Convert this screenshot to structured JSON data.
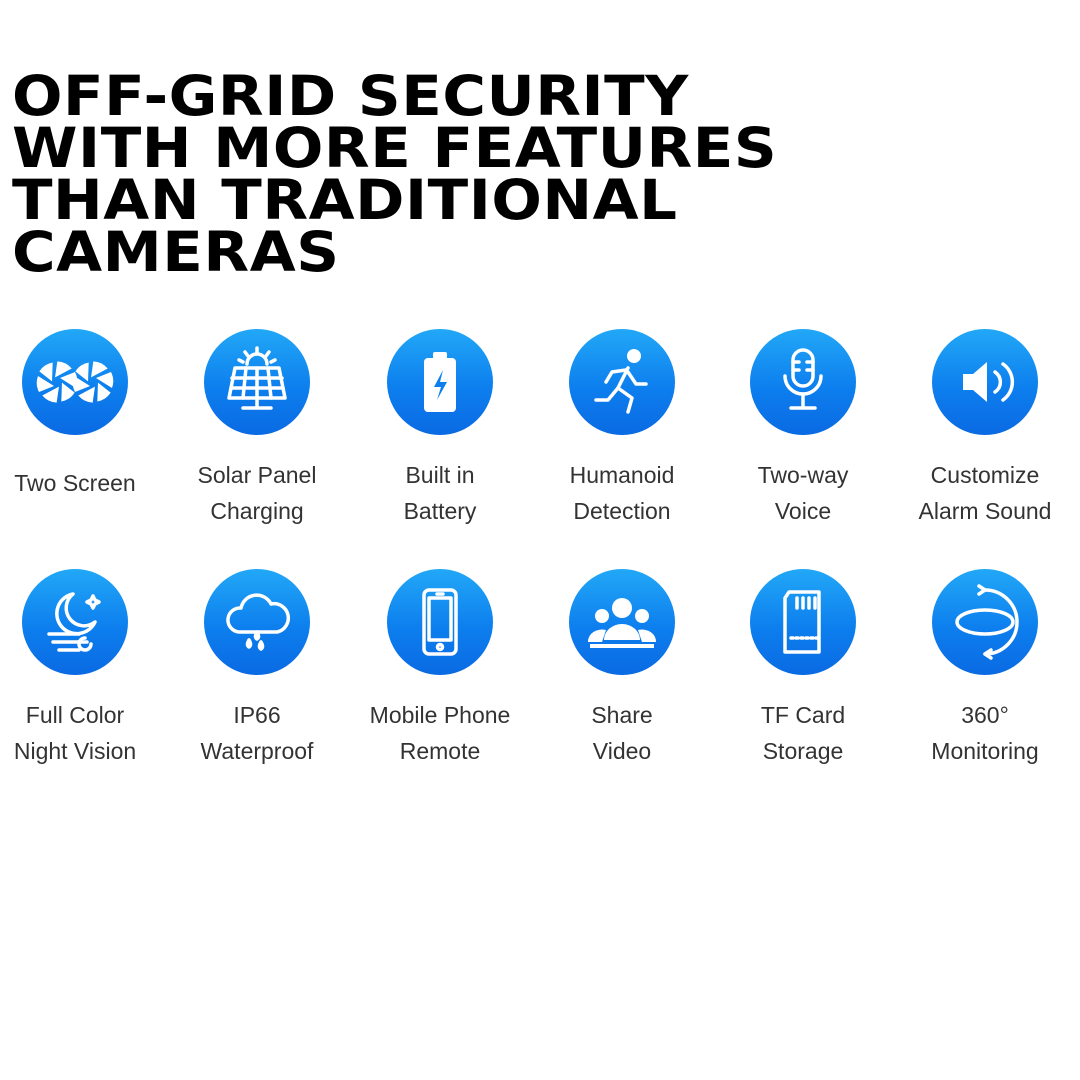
{
  "headline": [
    "OFF-GRID SECURITY",
    "WITH MORE FEATURES",
    "THAN TRADITIONAL",
    "CAMERAS"
  ],
  "accent_color": "#0d7fee",
  "features": [
    {
      "icon": "two-screen-icon",
      "lines": [
        "Two Screen"
      ]
    },
    {
      "icon": "solar-panel-icon",
      "lines": [
        "Solar Panel",
        "Charging"
      ]
    },
    {
      "icon": "battery-icon",
      "lines": [
        "Built in",
        "Battery"
      ]
    },
    {
      "icon": "running-person-icon",
      "lines": [
        "Humanoid",
        "Detection"
      ]
    },
    {
      "icon": "microphone-icon",
      "lines": [
        "Two-way",
        "Voice"
      ]
    },
    {
      "icon": "speaker-icon",
      "lines": [
        "Customize",
        "Alarm Sound"
      ]
    },
    {
      "icon": "night-moon-icon",
      "lines": [
        "Full Color",
        "Night Vision"
      ]
    },
    {
      "icon": "rain-cloud-icon",
      "lines": [
        "IP66",
        "Waterproof"
      ]
    },
    {
      "icon": "mobile-phone-icon",
      "lines": [
        "Mobile Phone",
        "Remote"
      ]
    },
    {
      "icon": "group-users-icon",
      "lines": [
        "Share",
        "Video"
      ]
    },
    {
      "icon": "sd-card-icon",
      "lines": [
        "TF Card",
        "Storage"
      ]
    },
    {
      "icon": "rotate-360-icon",
      "lines": [
        "360°",
        "Monitoring"
      ]
    }
  ]
}
